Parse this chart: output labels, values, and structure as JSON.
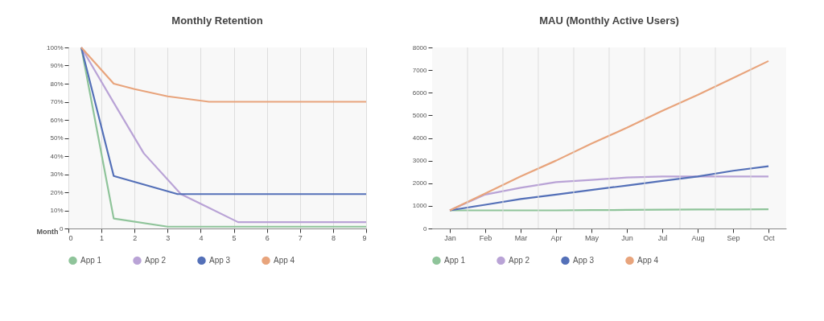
{
  "chart_data": [
    {
      "type": "line",
      "title": "Monthly Retention",
      "xlabel": "Month",
      "grid": "x",
      "legend": "bottom",
      "marker": "none",
      "line_style": "solid",
      "xlim": [
        0,
        9
      ],
      "xticks": [
        0,
        1,
        2,
        3,
        4,
        5,
        6,
        7,
        8,
        9
      ],
      "ylim": [
        0,
        100
      ],
      "yticks": [
        0,
        {
          "value": 10,
          "label": "10%"
        },
        {
          "value": 20,
          "label": "20%"
        },
        {
          "value": 30,
          "label": "30%"
        },
        {
          "value": 40,
          "label": "40%"
        },
        {
          "value": 50,
          "label": "50%"
        },
        {
          "value": 60,
          "label": "60%"
        },
        {
          "value": 70,
          "label": "70%"
        },
        {
          "value": 80,
          "label": "80%"
        },
        {
          "value": 90,
          "label": "90%"
        },
        {
          "value": 100,
          "label": "100%"
        }
      ],
      "series": [
        {
          "name": "App 1",
          "color": "#8fc49a",
          "x": [
            0.39,
            1.37,
            3,
            9
          ],
          "values": [
            100,
            5.5,
            1,
            1
          ]
        },
        {
          "name": "App 2",
          "color": "#b9a3d6",
          "x": [
            0.39,
            1.37,
            2.28,
            3.4,
            5.13,
            9
          ],
          "values": [
            100,
            69.5,
            41.5,
            19,
            3.5,
            3.5
          ]
        },
        {
          "name": "App 3",
          "color": "#5470b8",
          "x": [
            0.39,
            1.37,
            3.3,
            9
          ],
          "values": [
            100,
            29,
            19,
            19
          ]
        },
        {
          "name": "App 4",
          "color": "#e8a47c",
          "x": [
            0.39,
            1.37,
            2,
            3,
            4.25,
            9
          ],
          "values": [
            100,
            80,
            77,
            73,
            70,
            70
          ]
        }
      ]
    },
    {
      "type": "line",
      "title": "MAU (Monthly Active Users)",
      "grid": "x",
      "legend": "bottom",
      "marker": "none",
      "line_style": "solid",
      "categories": [
        "Jan",
        "Feb",
        "Mar",
        "Apr",
        "May",
        "Jun",
        "Jul",
        "Aug",
        "Sep",
        "Oct"
      ],
      "ylim": [
        0,
        8000
      ],
      "yticks": [
        0,
        1000,
        2000,
        3000,
        4000,
        5000,
        6000,
        7000,
        8000
      ],
      "series": [
        {
          "name": "App 1",
          "color": "#8fc49a",
          "values": [
            800,
            800,
            800,
            800,
            810,
            820,
            830,
            840,
            840,
            850
          ]
        },
        {
          "name": "App 2",
          "color": "#b9a3d6",
          "values": [
            800,
            1500,
            1800,
            2050,
            2150,
            2250,
            2300,
            2300,
            2300,
            2300
          ]
        },
        {
          "name": "App 3",
          "color": "#5470b8",
          "values": [
            800,
            1050,
            1300,
            1500,
            1700,
            1900,
            2100,
            2300,
            2550,
            2750
          ]
        },
        {
          "name": "App 4",
          "color": "#e8a47c",
          "values": [
            800,
            1550,
            2300,
            3000,
            3750,
            4450,
            5200,
            5900,
            6650,
            7400
          ]
        }
      ]
    }
  ]
}
